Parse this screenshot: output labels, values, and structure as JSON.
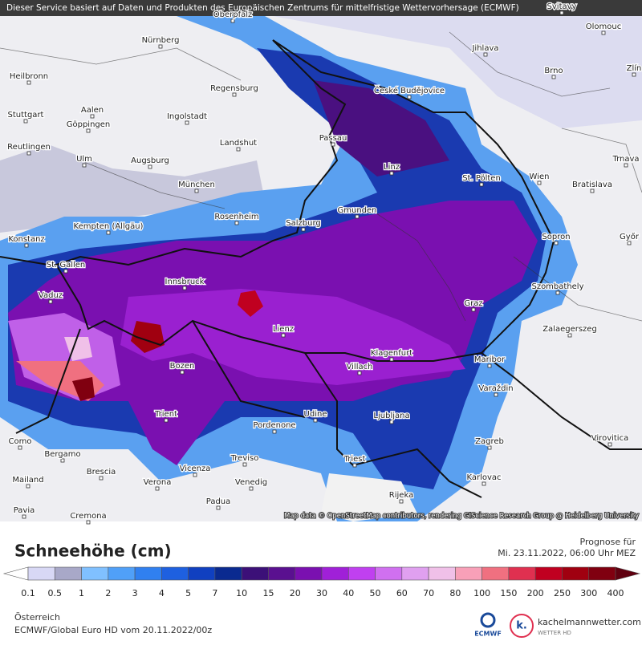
{
  "header": {
    "notice": "Dieser Service basiert auf Daten und Produkten des Europäischen Zentrums für mittelfristige Wettervorhersage (ECMWF)"
  },
  "map": {
    "attribution": "Map data © OpenStreetMap contributors, rendering GIScience Research Group @ Heidelberg University",
    "cities": [
      "Oberpfalz",
      "Svitavy",
      "Nürnberg",
      "Olomouc",
      "Jihlava",
      "Heilbronn",
      "Zlín",
      "Brno",
      "Regensburg",
      "České Budějovice",
      "Aalen",
      "Stuttgart",
      "Göppingen",
      "Ingolstadt",
      "Passau",
      "Reutlingen",
      "Landshut",
      "Ulm",
      "Augsburg",
      "Trnava",
      "Linz",
      "St. Pölten",
      "Wien",
      "Bratislava",
      "München",
      "Gmunden",
      "Rosenheim",
      "Kempten (Allgäu)",
      "Salzburg",
      "Konstanz",
      "Sopron",
      "Győr",
      "St. Gallen",
      "Innsbruck",
      "Szombathely",
      "Vaduz",
      "Graz",
      "Zalaegerszeg",
      "Lienz",
      "Klagenfurt",
      "Maribor",
      "Bozen",
      "Villach",
      "Varaždin",
      "Udine",
      "Trient",
      "Ljubljana",
      "Pordenone",
      "Zagreb",
      "Virovitica",
      "Como",
      "Bergamo",
      "Treviso",
      "Triest",
      "Brescia",
      "Vicenza",
      "Karlovac",
      "Mailand",
      "Verona",
      "Venedig",
      "Rijeka",
      "Padua",
      "Pavia",
      "Cremona"
    ]
  },
  "legend": {
    "title": "Schneehöhe (cm)",
    "forecast_label": "Prognose für",
    "forecast_time": "Mi. 23.11.2022, 06:00 Uhr MEZ",
    "labels": [
      0.1,
      0.5,
      1,
      2,
      3,
      4,
      5,
      7,
      10,
      15,
      20,
      30,
      40,
      50,
      60,
      70,
      80,
      100,
      150,
      200,
      250,
      300,
      400
    ],
    "colors": [
      "#ffffff",
      "#d8d8f5",
      "#a8a8c8",
      "#80c0ff",
      "#50a0f8",
      "#3080f0",
      "#1e60e0",
      "#1040c0",
      "#0a2a90",
      "#3c1078",
      "#5a1090",
      "#7a10b0",
      "#a020d8",
      "#c040f0",
      "#d070f0",
      "#e0a0f0",
      "#f0c0e8",
      "#f8a0b8",
      "#f07080",
      "#e03050",
      "#c00020",
      "#a00010",
      "#800010",
      "#600010"
    ]
  },
  "footer": {
    "region": "Österreich",
    "model": "ECMWF/Global Euro HD vom  20.11.2022/00z",
    "ecmwf": "ECMWF",
    "k": "k.",
    "site": "kachelmannwetter.com",
    "site_sub": "WETTER HD"
  }
}
